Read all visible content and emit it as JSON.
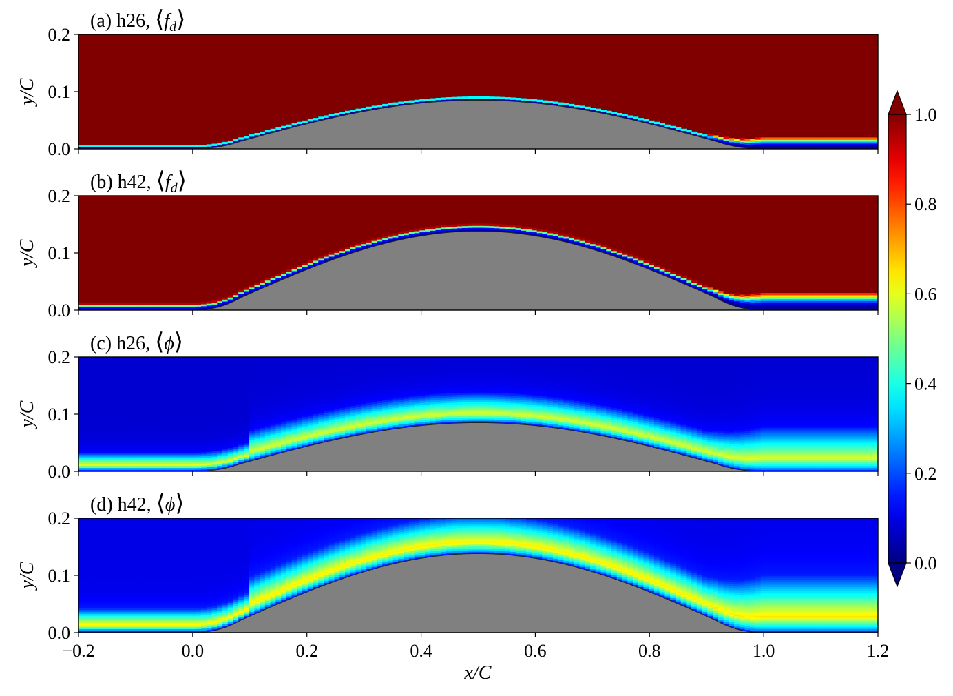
{
  "chart_data": {
    "type": "heatmap",
    "colormap": "jet",
    "shared_xlabel": "x/C",
    "xlim": [
      -0.2,
      1.2
    ],
    "xticks": [
      "−0.2",
      "0.0",
      "0.2",
      "0.4",
      "0.6",
      "0.8",
      "1.0",
      "1.2"
    ],
    "colorbar": {
      "range": [
        0.0,
        1.0
      ],
      "ticks": [
        "0.0",
        "0.2",
        "0.4",
        "0.6",
        "0.8",
        "1.0"
      ],
      "extend": "both"
    },
    "panels": [
      {
        "title_prefix": "(a) h26,",
        "quantity": "f_d",
        "ylabel": "y/C",
        "ylim": [
          0.0,
          0.2
        ],
        "yticks": [
          "0.0",
          "0.1",
          "0.2"
        ],
        "hill_height": 0.085,
        "freestream_value": 1.0,
        "near_wall_value": 0.05,
        "layer_thickness": 0.008
      },
      {
        "title_prefix": "(b) h42,",
        "quantity": "f_d",
        "ylabel": "y/C",
        "ylim": [
          0.0,
          0.2
        ],
        "yticks": [
          "0.0",
          "0.1",
          "0.2"
        ],
        "hill_height": 0.138,
        "freestream_value": 1.0,
        "near_wall_value": 0.05,
        "layer_thickness": 0.012
      },
      {
        "title_prefix": "(c) h26,",
        "quantity": "phi",
        "ylabel": "y/C",
        "ylim": [
          0.0,
          0.2
        ],
        "yticks": [
          "0.0",
          "0.1",
          "0.2"
        ],
        "hill_height": 0.085,
        "freestream_value": 0.08,
        "peak_value": 0.6,
        "layer_thickness": 0.05
      },
      {
        "title_prefix": "(d) h42,",
        "quantity": "phi",
        "ylabel": "y/C",
        "ylim": [
          0.0,
          0.2
        ],
        "yticks": [
          "0.0",
          "0.1",
          "0.2"
        ],
        "hill_height": 0.138,
        "freestream_value": 0.1,
        "peak_value": 0.65,
        "layer_thickness": 0.065
      }
    ]
  }
}
